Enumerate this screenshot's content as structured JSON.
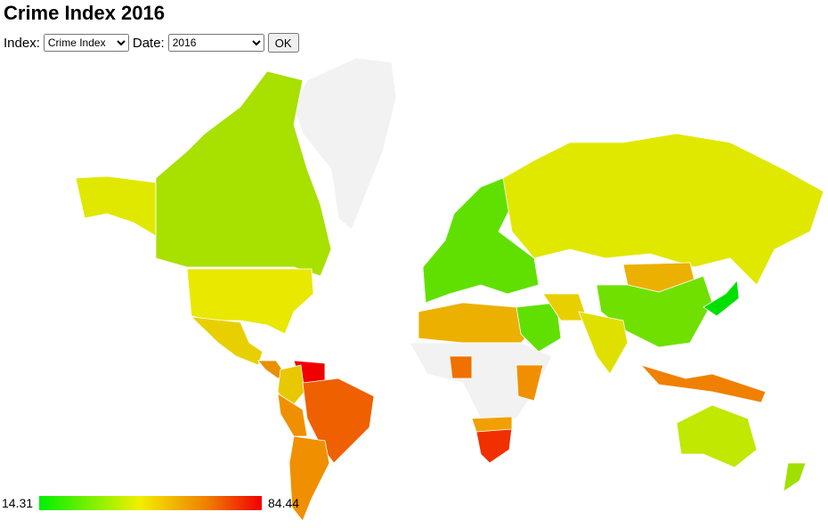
{
  "header": {
    "title": "Crime Index 2016"
  },
  "controls": {
    "index_label": "Index:",
    "index_value": "Crime Index",
    "date_label": "Date:",
    "date_value": "2016",
    "button": "OK"
  },
  "legend": {
    "min": 14.31,
    "max": 84.44
  }
}
